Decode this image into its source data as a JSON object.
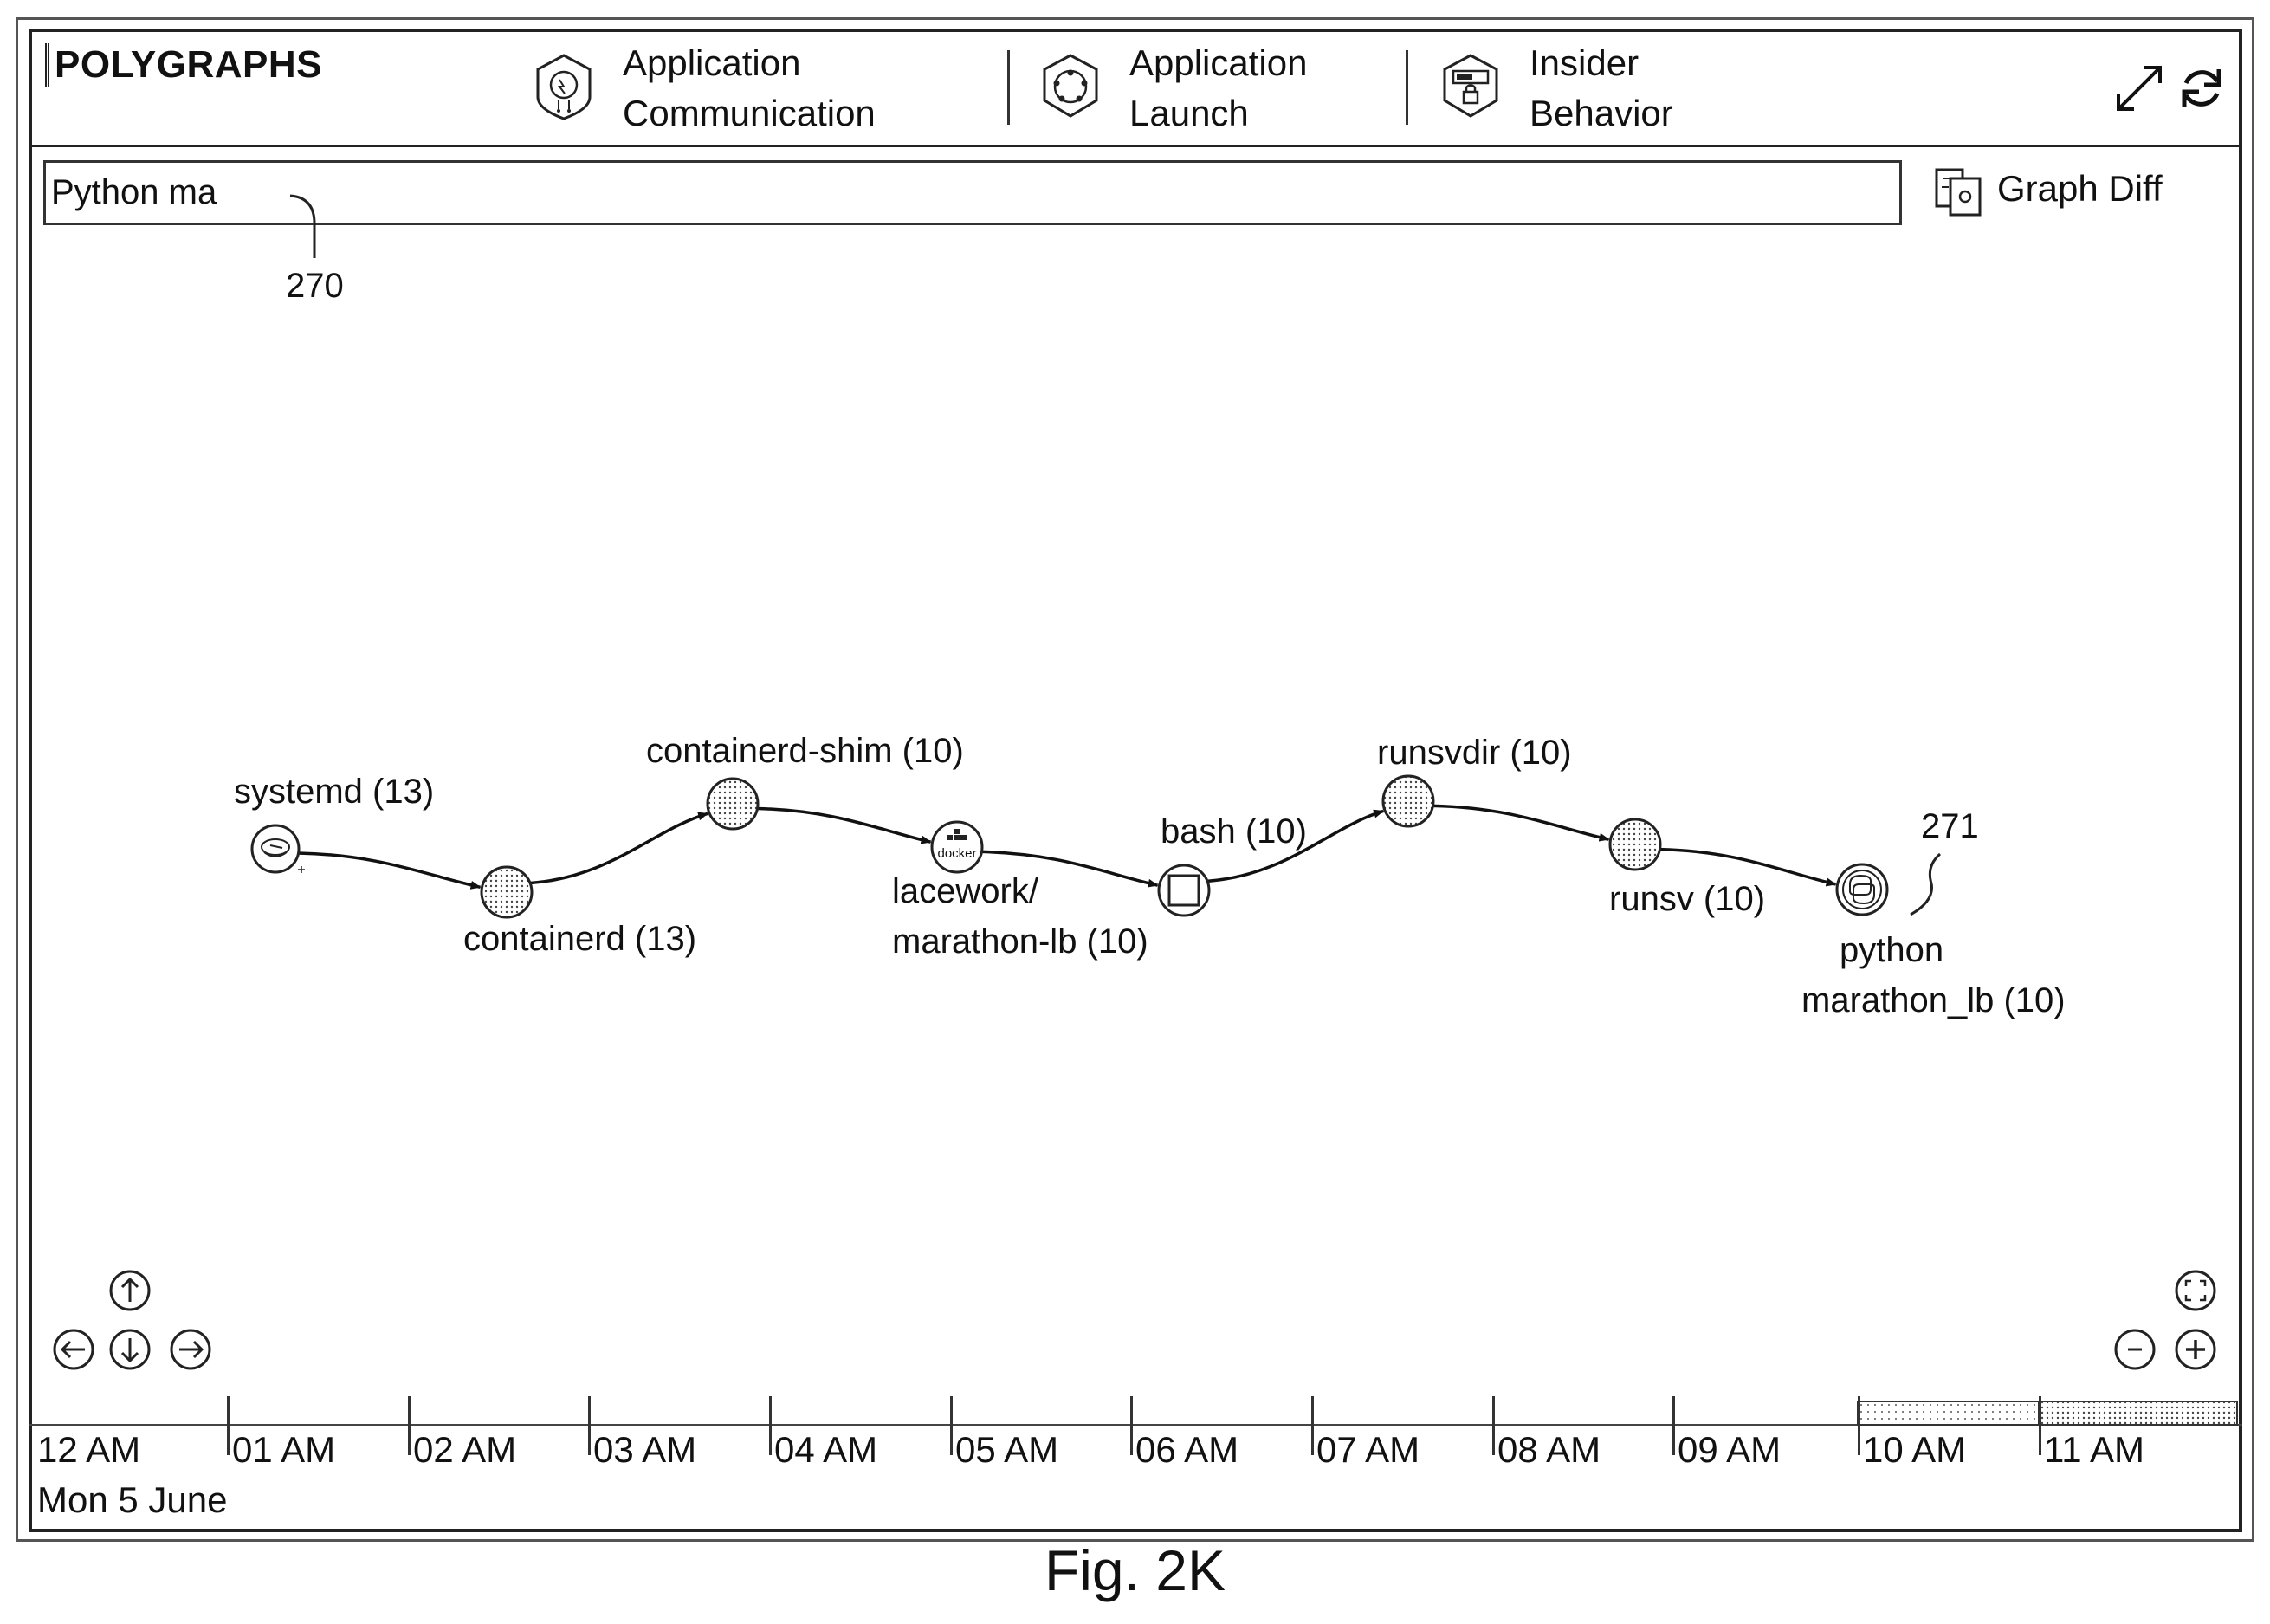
{
  "header": {
    "app_title": "POLYGRAPHS",
    "tabs": [
      {
        "line1": "Application",
        "line2": "Communication",
        "icon": "app-communication-icon"
      },
      {
        "line1": "Application",
        "line2": "Launch",
        "icon": "app-launch-icon"
      },
      {
        "line1": "Insider",
        "line2": "Behavior",
        "icon": "insider-behavior-icon"
      }
    ],
    "controls": [
      "expand-icon",
      "refresh-icon"
    ]
  },
  "search": {
    "value": "Python ma"
  },
  "graph_diff": {
    "label": "Graph Diff",
    "icon": "graph-diff-icon"
  },
  "references": {
    "search": "270",
    "python_node": "271"
  },
  "graph": {
    "nodes": [
      {
        "id": "systemd",
        "label_lines": [
          "systemd (13)"
        ],
        "icon": "systemd-icon"
      },
      {
        "id": "containerd",
        "label_lines": [
          "containerd (13)"
        ],
        "icon": "dotted-node"
      },
      {
        "id": "containerd-shim",
        "label_lines": [
          "containerd-shim (10)"
        ],
        "icon": "dotted-node"
      },
      {
        "id": "lacework",
        "label_lines": [
          "lacework/",
          "marathon-lb (10)"
        ],
        "icon": "docker-icon",
        "icon_text": "docker"
      },
      {
        "id": "bash",
        "label_lines": [
          "bash (10)"
        ],
        "icon": "terminal-icon"
      },
      {
        "id": "runsvdir",
        "label_lines": [
          "runsvdir (10)"
        ],
        "icon": "dotted-node"
      },
      {
        "id": "runsv",
        "label_lines": [
          "runsv (10)"
        ],
        "icon": "dotted-node"
      },
      {
        "id": "python",
        "label_lines": [
          "python",
          "marathon_lb (10)"
        ],
        "icon": "python-icon"
      }
    ],
    "edges": [
      [
        "systemd",
        "containerd"
      ],
      [
        "containerd",
        "containerd-shim"
      ],
      [
        "containerd-shim",
        "lacework"
      ],
      [
        "lacework",
        "bash"
      ],
      [
        "bash",
        "runsvdir"
      ],
      [
        "runsvdir",
        "runsv"
      ],
      [
        "runsv",
        "python"
      ]
    ]
  },
  "pan_controls": [
    "pan-up-icon",
    "pan-left-icon",
    "pan-down-icon",
    "pan-right-icon"
  ],
  "zoom_controls": [
    "fit-view-icon",
    "zoom-out-icon",
    "zoom-in-icon"
  ],
  "timeline": {
    "ticks": [
      "12 AM",
      "01 AM",
      "02 AM",
      "03 AM",
      "04 AM",
      "05 AM",
      "06 AM",
      "07 AM",
      "08 AM",
      "09 AM",
      "10 AM",
      "11 AM"
    ],
    "date": "Mon 5 June",
    "highlighted_hours": [
      "10 AM",
      "11 AM"
    ]
  },
  "caption": "Fig. 2K"
}
